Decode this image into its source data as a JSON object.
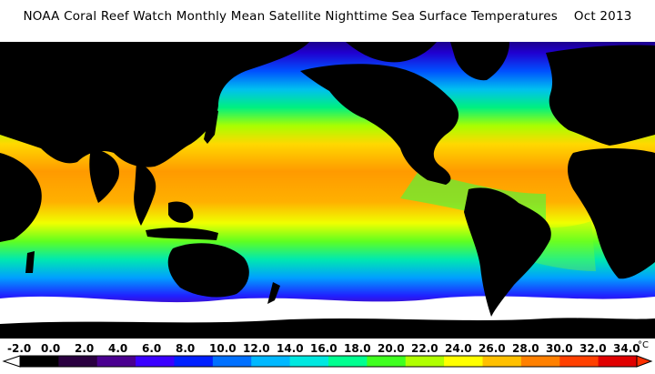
{
  "title": "NOAA Coral Reef Watch Monthly Mean Satellite Nighttime Sea Surface Temperatures    Oct 2013",
  "legend": {
    "ticks": [
      "-2.0",
      "0.0",
      "2.0",
      "4.0",
      "6.0",
      "8.0",
      "10.0",
      "12.0",
      "14.0",
      "16.0",
      "18.0",
      "20.0",
      "22.0",
      "24.0",
      "26.0",
      "28.0",
      "30.0",
      "32.0",
      "34.0"
    ],
    "unit": "°C",
    "min": -2.0,
    "max": 34.0,
    "colors": {
      "min_arrow": "#ffffff",
      "max_arrow": "#ff3000",
      "ramp": [
        "#000000",
        "#2a0040",
        "#4a0090",
        "#3a00ff",
        "#0020ff",
        "#0070ff",
        "#00b8ff",
        "#00e8e0",
        "#00ff90",
        "#40ff20",
        "#b0ff00",
        "#ffff00",
        "#ffc000",
        "#ff8000",
        "#ff4000",
        "#e00000"
      ]
    }
  },
  "map_colors": {
    "land": "#000000",
    "ice": "#ffffff",
    "cold": "#3a00c8",
    "cool": "#00b8ff",
    "mild": "#00e070",
    "warm": "#ffe000",
    "hot": "#ff9000"
  }
}
